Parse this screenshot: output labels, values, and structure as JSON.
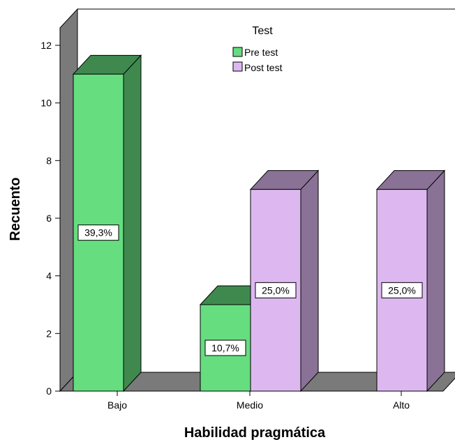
{
  "chart_data": {
    "type": "bar",
    "categories": [
      "Bajo",
      "Medio",
      "Alto"
    ],
    "series": [
      {
        "name": "Pre test",
        "values": [
          11,
          3,
          0
        ],
        "labels": [
          "39,3%",
          "10,7%",
          ""
        ],
        "color": "#66DD7F"
      },
      {
        "name": "Post test",
        "values": [
          0,
          7,
          7
        ],
        "labels": [
          "",
          "25,0%",
          "25,0%"
        ],
        "color": "#DDB8F0"
      }
    ],
    "xlabel": "Habilidad pragmática",
    "ylabel": "Recuento",
    "ylim": [
      0,
      12
    ],
    "yticks": [
      0,
      2,
      4,
      6,
      8,
      10,
      12
    ],
    "legend": {
      "title": "Test",
      "placement": "top-center"
    },
    "grid": false,
    "style": "3d"
  }
}
